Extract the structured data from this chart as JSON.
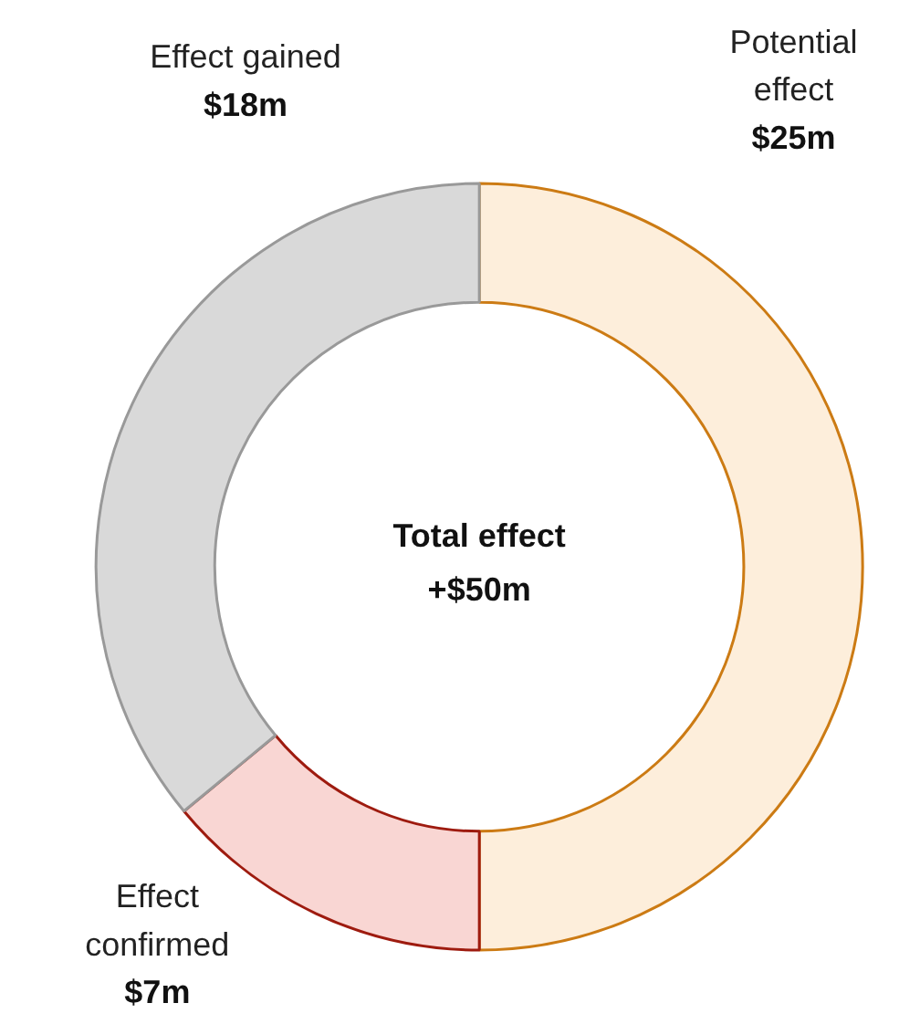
{
  "chart_data": {
    "type": "donut",
    "categories": [
      "Potential effect",
      "Effect confirmed",
      "Effect gained"
    ],
    "values": [
      25,
      7,
      18
    ],
    "colors": [
      "#fdeedb",
      "#f9d6d3",
      "#d9d9d9"
    ],
    "value_labels": [
      "$25m",
      "$7m",
      "$18m"
    ],
    "annotations": [
      "Total effect",
      "+$50m"
    ]
  }
}
